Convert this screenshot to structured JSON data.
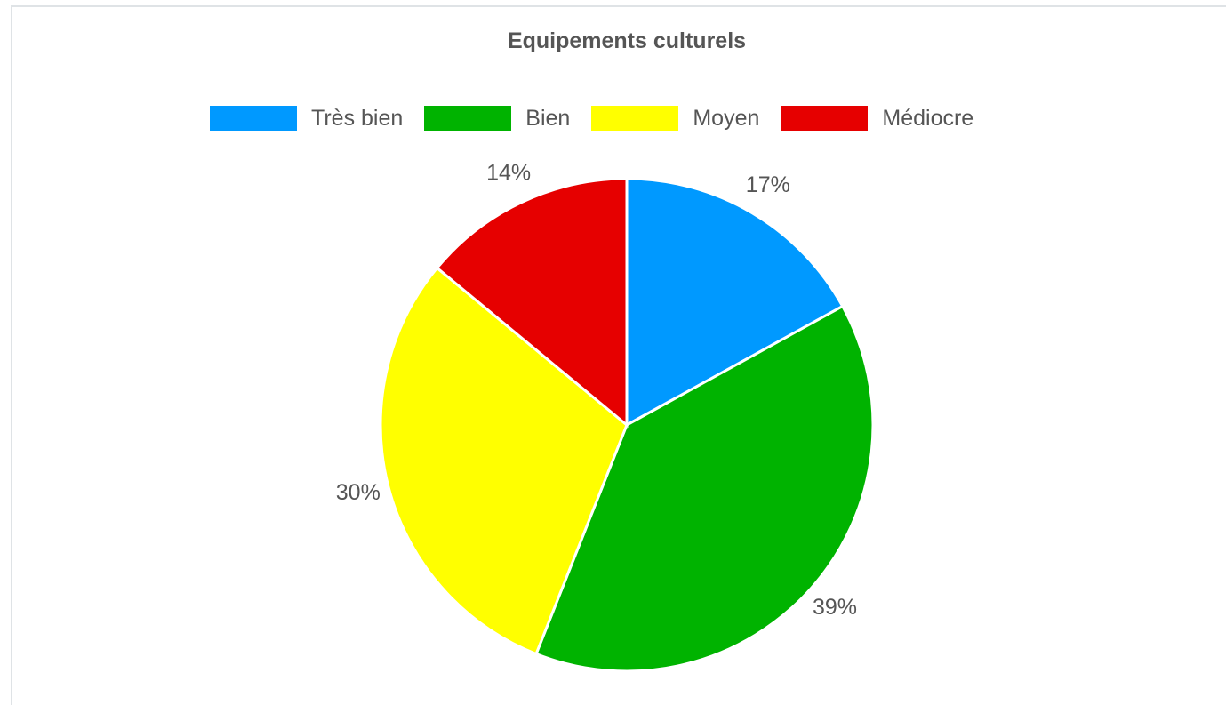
{
  "chart_data": {
    "type": "pie",
    "title": "Equipements culturels",
    "categories": [
      "Très bien",
      "Bien",
      "Moyen",
      "Médiocre"
    ],
    "values": [
      17,
      39,
      30,
      14
    ],
    "labels": [
      "17%",
      "39%",
      "30%",
      "14%"
    ],
    "colors": [
      "#0099ff",
      "#00b300",
      "#ffff00",
      "#e60000"
    ],
    "legend_position": "top",
    "start_angle": "top",
    "direction": "clockwise"
  }
}
